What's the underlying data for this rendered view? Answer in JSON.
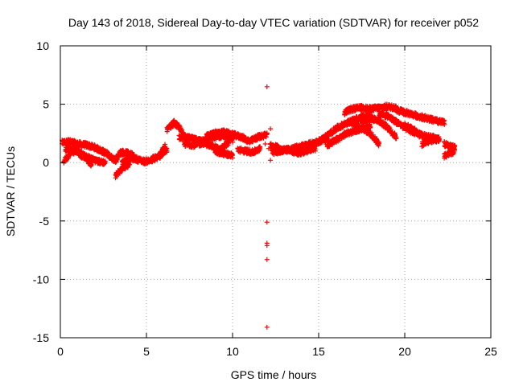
{
  "chart_data": {
    "type": "scatter",
    "title": "Day 143 of 2018, Sidereal Day-to-day VTEC variation (SDTVAR) for receiver p052",
    "xlabel": "GPS time / hours",
    "ylabel": "SDTVAR / TECUs",
    "xlim": [
      0,
      25
    ],
    "ylim": [
      -15,
      10
    ],
    "xticks": [
      0,
      5,
      10,
      15,
      20,
      25
    ],
    "yticks": [
      -15,
      -10,
      -5,
      0,
      5,
      10
    ],
    "grid": true,
    "marker_color": "#ff0000",
    "marker": "+",
    "series": [
      {
        "name": "p052",
        "trends": [
          {
            "x": [
              0.1,
              0.5,
              1.0,
              1.5,
              2.0,
              2.4,
              2.8
            ],
            "y": [
              1.7,
              1.8,
              1.6,
              1.5,
              1.3,
              1.0,
              0.7
            ]
          },
          {
            "x": [
              0.2,
              0.6,
              1.0,
              1.4,
              1.8
            ],
            "y": [
              0.1,
              0.9,
              1.0,
              0.6,
              -0.2
            ]
          },
          {
            "x": [
              0.3,
              0.8,
              1.2,
              1.7,
              2.2,
              2.6
            ],
            "y": [
              1.1,
              1.3,
              0.6,
              0.4,
              0.1,
              0.0
            ]
          },
          {
            "x": [
              2.8,
              3.2,
              3.5,
              3.9,
              4.3
            ],
            "y": [
              0.6,
              0.2,
              0.9,
              0.8,
              0.6
            ]
          },
          {
            "x": [
              3.2,
              3.6,
              4.0
            ],
            "y": [
              -1.1,
              -0.5,
              -0.1
            ]
          },
          {
            "x": [
              3.6,
              4.0,
              4.4,
              4.9,
              5.3,
              5.8,
              6.2
            ],
            "y": [
              0.0,
              0.4,
              0.3,
              0.1,
              0.2,
              0.6,
              1.1
            ]
          },
          {
            "x": [
              5.3,
              5.8,
              6.1
            ],
            "y": [
              0.3,
              0.7,
              1.4
            ]
          },
          {
            "x": [
              6.2,
              6.6,
              6.9,
              7.2
            ],
            "y": [
              2.8,
              3.4,
              3.0,
              2.3
            ]
          },
          {
            "x": [
              6.9,
              7.5,
              8.0,
              8.5,
              9.0,
              9.5,
              10.0
            ],
            "y": [
              2.2,
              2.1,
              1.9,
              2.0,
              2.2,
              2.3,
              1.9
            ]
          },
          {
            "x": [
              7.2,
              7.8,
              8.3,
              8.8,
              9.3,
              9.8
            ],
            "y": [
              1.6,
              1.5,
              1.7,
              1.4,
              1.1,
              1.8
            ]
          },
          {
            "x": [
              8.5,
              9.0,
              9.5,
              10.0,
              10.5,
              11.0,
              11.5,
              12.0
            ],
            "y": [
              2.3,
              2.5,
              2.6,
              2.4,
              2.2,
              1.8,
              2.2,
              2.4
            ]
          },
          {
            "x": [
              9.0,
              9.5,
              10.0
            ],
            "y": [
              0.9,
              0.8,
              0.6
            ]
          },
          {
            "x": [
              10.3,
              10.7,
              11.2,
              11.6
            ],
            "y": [
              1.1,
              1.0,
              0.9,
              1.2
            ]
          },
          {
            "x": [
              12.2,
              12.6,
              13.0,
              13.5,
              14.0,
              14.5,
              15.0,
              15.5
            ],
            "y": [
              1.5,
              1.3,
              1.1,
              1.2,
              1.4,
              1.6,
              1.8,
              2.0
            ]
          },
          {
            "x": [
              12.3,
              12.8,
              13.3,
              13.8,
              14.3,
              14.8
            ],
            "y": [
              0.9,
              1.0,
              1.1,
              0.8,
              1.0,
              1.2
            ]
          },
          {
            "x": [
              15.0,
              15.5,
              16.0,
              16.5,
              17.0,
              17.5,
              18.0
            ],
            "y": [
              1.8,
              2.3,
              2.9,
              3.3,
              3.6,
              3.9,
              4.1
            ]
          },
          {
            "x": [
              15.5,
              16.0,
              16.5,
              17.0,
              17.5,
              18.0
            ],
            "y": [
              1.5,
              1.9,
              2.4,
              2.7,
              2.9,
              3.1
            ]
          },
          {
            "x": [
              16.5,
              17.0,
              17.5,
              18.0,
              18.5,
              19.0,
              19.5
            ],
            "y": [
              4.3,
              4.6,
              4.7,
              4.6,
              4.7,
              4.8,
              4.7
            ]
          },
          {
            "x": [
              17.0,
              17.5,
              18.0,
              18.5
            ],
            "y": [
              3.3,
              3.0,
              2.5,
              1.6
            ]
          },
          {
            "x": [
              17.5,
              18.0,
              18.5,
              19.0,
              19.5
            ],
            "y": [
              3.5,
              3.8,
              3.6,
              3.0,
              2.2
            ]
          },
          {
            "x": [
              18.5,
              19.0,
              19.5,
              20.0,
              20.5,
              21.0
            ],
            "y": [
              4.2,
              4.0,
              3.5,
              3.0,
              2.6,
              2.3
            ]
          },
          {
            "x": [
              19.5,
              20.0,
              20.5,
              21.0,
              21.5,
              22.0,
              22.3
            ],
            "y": [
              4.5,
              4.3,
              4.1,
              3.9,
              3.7,
              3.5,
              3.4
            ]
          },
          {
            "x": [
              20.0,
              20.5,
              21.0,
              21.5,
              22.0
            ],
            "y": [
              3.2,
              2.8,
              2.3,
              2.2,
              2.0
            ]
          },
          {
            "x": [
              21.0,
              21.5,
              22.0
            ],
            "y": [
              1.6,
              1.9,
              2.0
            ]
          },
          {
            "x": [
              22.3,
              22.6,
              22.9
            ],
            "y": [
              1.6,
              1.4,
              1.3
            ]
          },
          {
            "x": [
              22.3,
              22.6,
              22.9
            ],
            "y": [
              0.6,
              0.8,
              1.0
            ]
          }
        ],
        "isolated_points": [
          {
            "x": 12.0,
            "y": 6.5
          },
          {
            "x": 12.0,
            "y": -5.1
          },
          {
            "x": 12.0,
            "y": -6.9
          },
          {
            "x": 12.0,
            "y": -7.1
          },
          {
            "x": 12.0,
            "y": -8.3
          },
          {
            "x": 12.0,
            "y": -14.1
          },
          {
            "x": 12.2,
            "y": 2.9
          },
          {
            "x": 12.2,
            "y": 0.2
          },
          {
            "x": 12.1,
            "y": 1.2
          },
          {
            "x": 11.9,
            "y": 1.6
          }
        ]
      }
    ]
  }
}
